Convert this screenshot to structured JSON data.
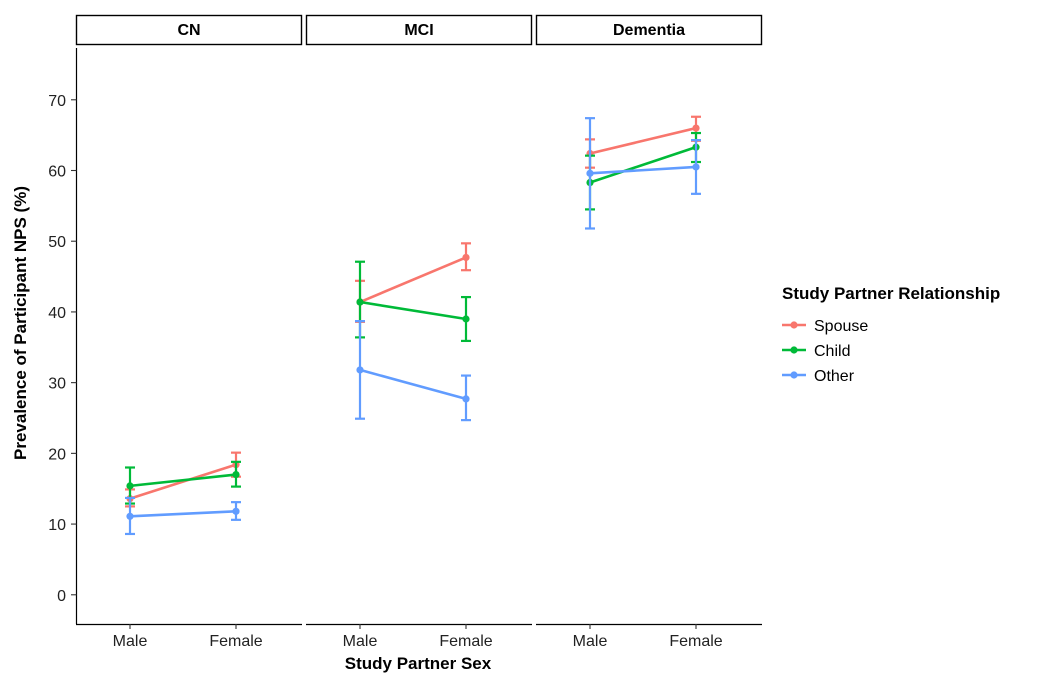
{
  "chart_data": {
    "type": "line",
    "xlabel": "Study Partner Sex",
    "ylabel": "Prevalence of Participant NPS (%)",
    "ylim": [
      -3,
      74
    ],
    "y_ticks": [
      0,
      10,
      20,
      30,
      40,
      50,
      60,
      70
    ],
    "categories": [
      "Male",
      "Female"
    ],
    "legend": {
      "title": "Study Partner Relationship",
      "position": "right"
    },
    "grid": false,
    "facets": [
      {
        "label": "CN",
        "series": [
          {
            "name": "Spouse",
            "color": "#F8766D",
            "values": [
              13.6,
              18.4
            ],
            "err_low": [
              12.5,
              16.7
            ],
            "err_high": [
              14.9,
              20.1
            ]
          },
          {
            "name": "Child",
            "color": "#00BA38",
            "values": [
              15.4,
              17.0
            ],
            "err_low": [
              12.9,
              15.3
            ],
            "err_high": [
              18.0,
              18.8
            ]
          },
          {
            "name": "Other",
            "color": "#619CFF",
            "values": [
              11.1,
              11.8
            ],
            "err_low": [
              8.6,
              10.6
            ],
            "err_high": [
              13.7,
              13.1
            ]
          }
        ]
      },
      {
        "label": "MCI",
        "series": [
          {
            "name": "Spouse",
            "color": "#F8766D",
            "values": [
              41.4,
              47.7
            ],
            "err_low": [
              38.6,
              45.9
            ],
            "err_high": [
              44.4,
              49.7
            ]
          },
          {
            "name": "Child",
            "color": "#00BA38",
            "values": [
              41.4,
              39.0
            ],
            "err_low": [
              36.4,
              35.9
            ],
            "err_high": [
              47.1,
              42.1
            ]
          },
          {
            "name": "Other",
            "color": "#619CFF",
            "values": [
              31.8,
              27.7
            ],
            "err_low": [
              24.9,
              24.7
            ],
            "err_high": [
              38.7,
              31.0
            ]
          }
        ]
      },
      {
        "label": "Dementia",
        "series": [
          {
            "name": "Spouse",
            "color": "#F8766D",
            "values": [
              62.4,
              66.0
            ],
            "err_low": [
              60.4,
              64.2
            ],
            "err_high": [
              64.4,
              67.6
            ]
          },
          {
            "name": "Child",
            "color": "#00BA38",
            "values": [
              58.3,
              63.3
            ],
            "err_low": [
              54.5,
              61.2
            ],
            "err_high": [
              62.1,
              65.3
            ]
          },
          {
            "name": "Other",
            "color": "#619CFF",
            "values": [
              59.6,
              60.5
            ],
            "err_low": [
              51.8,
              56.7
            ],
            "err_high": [
              67.4,
              64.3
            ]
          }
        ]
      }
    ]
  }
}
